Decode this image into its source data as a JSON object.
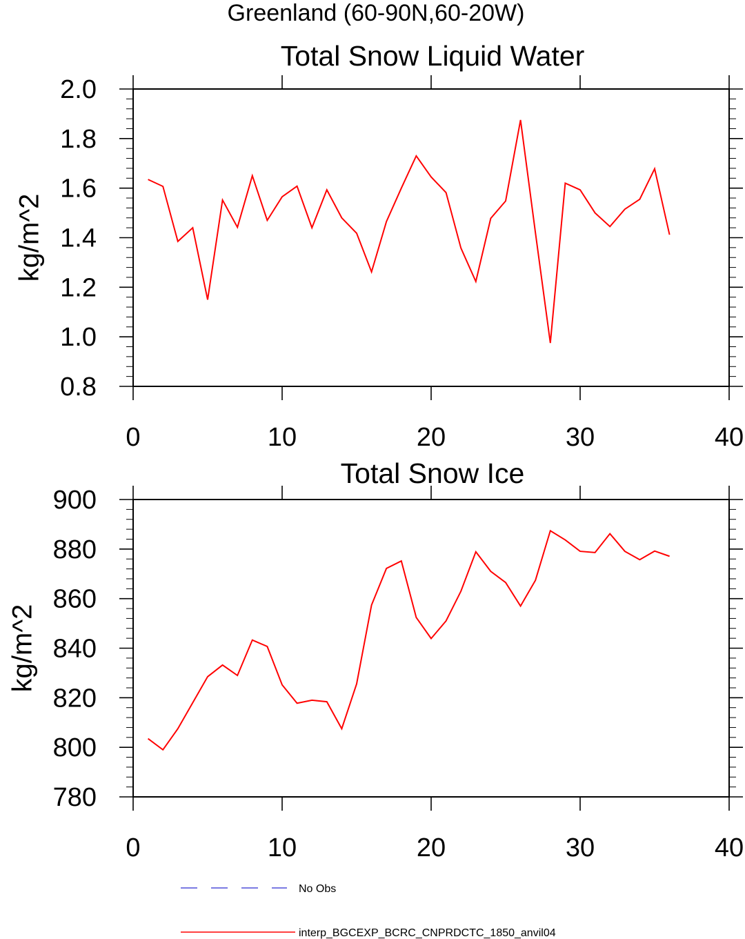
{
  "figure": {
    "title": "Greenland (60-90N,60-20W)"
  },
  "chart_data": [
    {
      "type": "line",
      "title": "Total Snow Liquid Water",
      "xlabel": "",
      "ylabel": "kg/m^2",
      "xlim": [
        0,
        40
      ],
      "ylim": [
        0.8,
        2.0
      ],
      "x_ticks": [
        0,
        10,
        20,
        30,
        40
      ],
      "x_tick_labels": [
        "0",
        "10",
        "20",
        "30",
        "40"
      ],
      "y_ticks": [
        0.8,
        1.0,
        1.2,
        1.4,
        1.6,
        1.8,
        2.0
      ],
      "y_tick_labels": [
        "0.8",
        "1.0",
        "1.2",
        "1.4",
        "1.6",
        "1.8",
        "2.0"
      ],
      "series": [
        {
          "name": "interp_BGCEXP_BCRC_CNPRDCTC_1850_anvil04",
          "color": "#ff0000",
          "x": [
            1,
            2,
            3,
            4,
            5,
            6,
            7,
            8,
            9,
            10,
            11,
            12,
            13,
            14,
            15,
            16,
            17,
            18,
            19,
            20,
            21,
            22,
            23,
            24,
            25,
            26,
            27,
            28,
            29,
            30,
            31,
            32,
            33,
            34,
            35,
            36
          ],
          "values": [
            1.635,
            1.607,
            1.385,
            1.44,
            1.15,
            1.552,
            1.442,
            1.65,
            1.47,
            1.565,
            1.608,
            1.44,
            1.593,
            1.48,
            1.418,
            1.262,
            1.465,
            1.6,
            1.73,
            1.645,
            1.582,
            1.358,
            1.223,
            1.478,
            1.548,
            1.875,
            1.42,
            0.975,
            1.62,
            1.593,
            1.5,
            1.445,
            1.515,
            1.555,
            1.678,
            1.412
          ]
        }
      ]
    },
    {
      "type": "line",
      "title": "Total Snow Ice",
      "xlabel": "",
      "ylabel": "kg/m^2",
      "xlim": [
        0,
        40
      ],
      "ylim": [
        780,
        900
      ],
      "x_ticks": [
        0,
        10,
        20,
        30,
        40
      ],
      "x_tick_labels": [
        "0",
        "10",
        "20",
        "30",
        "40"
      ],
      "y_ticks": [
        780,
        800,
        820,
        840,
        860,
        880,
        900
      ],
      "y_tick_labels": [
        "780",
        "800",
        "820",
        "840",
        "860",
        "880",
        "900"
      ],
      "series": [
        {
          "name": "interp_BGCEXP_BCRC_CNPRDCTC_1850_anvil04",
          "color": "#ff0000",
          "x": [
            1,
            2,
            3,
            4,
            5,
            6,
            7,
            8,
            9,
            10,
            11,
            12,
            13,
            14,
            15,
            16,
            17,
            18,
            19,
            20,
            21,
            22,
            23,
            24,
            25,
            26,
            27,
            28,
            29,
            30,
            31,
            32,
            33,
            34,
            35,
            36
          ],
          "values": [
            803.5,
            799,
            807.5,
            818,
            828.5,
            833.2,
            829,
            843.3,
            840.7,
            825.2,
            817.8,
            819,
            818.4,
            807.5,
            825.6,
            857.4,
            872.2,
            875.2,
            852.4,
            843.9,
            851,
            863,
            878.9,
            871,
            866.5,
            857,
            867.4,
            887.4,
            883.7,
            879.1,
            878.6,
            886.2,
            879.1,
            875.7,
            879.2,
            877.1
          ]
        }
      ]
    }
  ],
  "legend": {
    "placement": "bottom-left",
    "entries": [
      {
        "label": "No Obs",
        "color": "#4f4fd9",
        "dash": "dashed"
      },
      {
        "label": "interp_BGCEXP_BCRC_CNPRDCTC_1850_anvil04",
        "color": "#ff0000",
        "dash": "solid"
      }
    ]
  }
}
